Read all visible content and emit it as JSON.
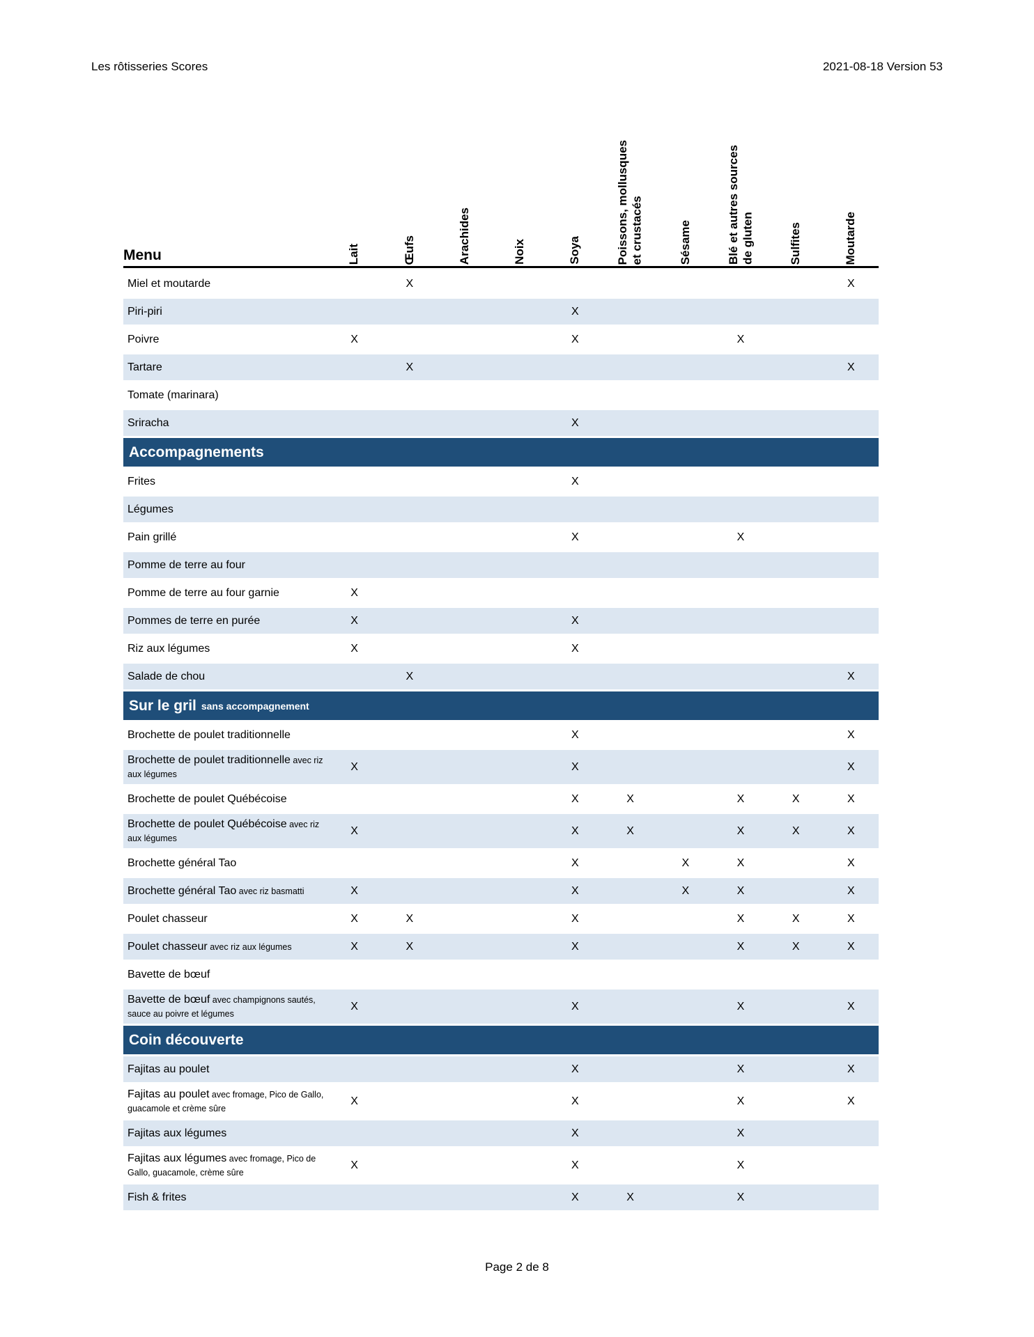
{
  "page": {
    "header_left": "Les rôtisseries Scores",
    "header_right": "2021-08-18 Version 53",
    "footer": "Page 2 de 8"
  },
  "table": {
    "menu_header": "Menu",
    "mark": "X",
    "colors": {
      "section_bg": "#1F4E79",
      "shaded_row_bg": "#DCE6F1",
      "text": "#000000"
    },
    "columns": [
      {
        "id": "lait",
        "label": "Lait"
      },
      {
        "id": "oeufs",
        "label": "Œufs"
      },
      {
        "id": "arachides",
        "label": "Arachides"
      },
      {
        "id": "noix",
        "label": "Noix"
      },
      {
        "id": "soya",
        "label": "Soya"
      },
      {
        "id": "poissons",
        "label": "Poissons, mollusques\net crustacés"
      },
      {
        "id": "sesame",
        "label": "Sésame"
      },
      {
        "id": "ble",
        "label": "Blé et autres sources\nde gluten"
      },
      {
        "id": "sulfites",
        "label": "Sulfites"
      },
      {
        "id": "moutarde",
        "label": "Moutarde"
      }
    ],
    "rows": [
      {
        "type": "item",
        "name": "Miel et moutarde",
        "sub": "",
        "shaded": false,
        "tall": false,
        "marks": [
          "oeufs",
          "moutarde"
        ]
      },
      {
        "type": "item",
        "name": "Piri-piri",
        "sub": "",
        "shaded": true,
        "tall": false,
        "marks": [
          "soya"
        ]
      },
      {
        "type": "item",
        "name": "Poivre",
        "sub": "",
        "shaded": false,
        "tall": false,
        "marks": [
          "lait",
          "soya",
          "ble"
        ]
      },
      {
        "type": "item",
        "name": "Tartare",
        "sub": "",
        "shaded": true,
        "tall": false,
        "marks": [
          "oeufs",
          "moutarde"
        ]
      },
      {
        "type": "item",
        "name": "Tomate (marinara)",
        "sub": "",
        "shaded": false,
        "tall": false,
        "marks": []
      },
      {
        "type": "item",
        "name": "Sriracha",
        "sub": "",
        "shaded": true,
        "tall": false,
        "marks": [
          "soya"
        ]
      },
      {
        "type": "section",
        "name": "Accompagnements",
        "sub": ""
      },
      {
        "type": "item",
        "name": "Frites",
        "sub": "",
        "shaded": false,
        "tall": false,
        "marks": [
          "soya"
        ]
      },
      {
        "type": "item",
        "name": "Légumes",
        "sub": "",
        "shaded": true,
        "tall": false,
        "marks": []
      },
      {
        "type": "item",
        "name": "Pain grillé",
        "sub": "",
        "shaded": false,
        "tall": false,
        "marks": [
          "soya",
          "ble"
        ]
      },
      {
        "type": "item",
        "name": "Pomme de terre au four",
        "sub": "",
        "shaded": true,
        "tall": false,
        "marks": []
      },
      {
        "type": "item",
        "name": "Pomme de terre au four garnie",
        "sub": "",
        "shaded": false,
        "tall": false,
        "marks": [
          "lait"
        ]
      },
      {
        "type": "item",
        "name": "Pommes de terre en purée",
        "sub": "",
        "shaded": true,
        "tall": false,
        "marks": [
          "lait",
          "soya"
        ]
      },
      {
        "type": "item",
        "name": "Riz aux légumes",
        "sub": "",
        "shaded": false,
        "tall": false,
        "marks": [
          "lait",
          "soya"
        ]
      },
      {
        "type": "item",
        "name": "Salade de chou",
        "sub": "",
        "shaded": true,
        "tall": false,
        "marks": [
          "oeufs",
          "moutarde"
        ]
      },
      {
        "type": "section",
        "name": "Sur le gril",
        "sub": "sans accompagnement"
      },
      {
        "type": "item",
        "name": "Brochette de poulet traditionnelle",
        "sub": "",
        "shaded": false,
        "tall": false,
        "marks": [
          "soya",
          "moutarde"
        ]
      },
      {
        "type": "item",
        "name": "Brochette de poulet traditionnelle",
        "sub": "avec riz aux légumes",
        "shaded": true,
        "tall": true,
        "marks": [
          "lait",
          "soya",
          "moutarde"
        ]
      },
      {
        "type": "item",
        "name": "Brochette de poulet Québécoise",
        "sub": "",
        "shaded": false,
        "tall": false,
        "marks": [
          "soya",
          "poissons",
          "ble",
          "sulfites",
          "moutarde"
        ]
      },
      {
        "type": "item",
        "name": "Brochette de poulet Québécoise",
        "sub": "avec riz aux légumes",
        "shaded": true,
        "tall": true,
        "marks": [
          "lait",
          "soya",
          "poissons",
          "ble",
          "sulfites",
          "moutarde"
        ]
      },
      {
        "type": "item",
        "name": "Brochette général Tao",
        "sub": "",
        "shaded": false,
        "tall": false,
        "marks": [
          "soya",
          "sesame",
          "ble",
          "moutarde"
        ]
      },
      {
        "type": "item",
        "name": "Brochette général Tao",
        "sub": "avec riz basmatti",
        "shaded": true,
        "tall": false,
        "marks": [
          "lait",
          "soya",
          "sesame",
          "ble",
          "moutarde"
        ]
      },
      {
        "type": "item",
        "name": "Poulet chasseur",
        "sub": "",
        "shaded": false,
        "tall": false,
        "marks": [
          "lait",
          "oeufs",
          "soya",
          "ble",
          "sulfites",
          "moutarde"
        ]
      },
      {
        "type": "item",
        "name": "Poulet chasseur",
        "sub": "avec riz aux légumes",
        "shaded": true,
        "tall": false,
        "marks": [
          "lait",
          "oeufs",
          "soya",
          "ble",
          "sulfites",
          "moutarde"
        ]
      },
      {
        "type": "item",
        "name": "Bavette de bœuf",
        "sub": "",
        "shaded": false,
        "tall": false,
        "marks": []
      },
      {
        "type": "item",
        "name": "Bavette de bœuf",
        "sub": "avec champignons sautés, sauce au poivre et légumes",
        "shaded": true,
        "tall": true,
        "marks": [
          "lait",
          "soya",
          "ble",
          "moutarde"
        ]
      },
      {
        "type": "section",
        "name": "Coin découverte",
        "sub": ""
      },
      {
        "type": "item",
        "name": "Fajitas au poulet",
        "sub": "",
        "shaded": true,
        "tall": false,
        "marks": [
          "soya",
          "ble",
          "moutarde"
        ]
      },
      {
        "type": "item",
        "name": "Fajitas au poulet",
        "sub": "avec fromage, Pico de Gallo, guacamole et crème sûre",
        "shaded": false,
        "tall": true,
        "marks": [
          "lait",
          "soya",
          "ble",
          "moutarde"
        ]
      },
      {
        "type": "item",
        "name": "Fajitas aux légumes",
        "sub": "",
        "shaded": true,
        "tall": false,
        "marks": [
          "soya",
          "ble"
        ]
      },
      {
        "type": "item",
        "name": "Fajitas aux légumes",
        "sub": "avec fromage, Pico de Gallo, guacamole, crème sûre",
        "shaded": false,
        "tall": true,
        "marks": [
          "lait",
          "soya",
          "ble"
        ]
      },
      {
        "type": "item",
        "name": "Fish & frites",
        "sub": "",
        "shaded": true,
        "tall": false,
        "marks": [
          "soya",
          "poissons",
          "ble"
        ]
      }
    ]
  }
}
